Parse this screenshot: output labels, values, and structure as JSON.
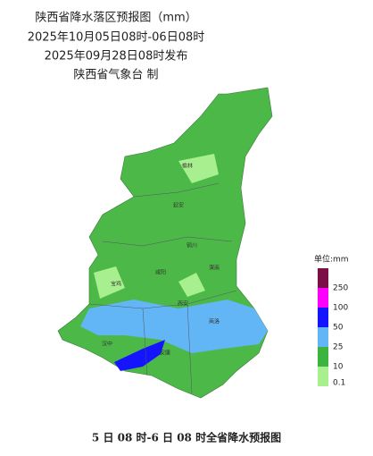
{
  "header": {
    "title": "陕西省降水落区预报图（mm）",
    "period": "2025年10月05日08时-06日08时",
    "issued": "2025年09月28日08时发布",
    "issuer": "陕西省气象台 制"
  },
  "cities": [
    "榆林",
    "延安",
    "铜川",
    "渭南",
    "咸阳",
    "宝鸡",
    "西安",
    "商洛",
    "汉中",
    "安康"
  ],
  "legend": {
    "unit": "单位:mm",
    "items": [
      {
        "label": 250,
        "color": "#7b0f45"
      },
      {
        "label": 100,
        "color": "#ff00ff"
      },
      {
        "label": 50,
        "color": "#1414ff"
      },
      {
        "label": 25,
        "color": "#62b6f5"
      },
      {
        "label": 10,
        "color": "#3db43d"
      },
      {
        "label": 0.1,
        "color": "#a8f08f"
      }
    ]
  },
  "caption": "5 日 08 时-6 日 08 时全省降水预报图"
}
